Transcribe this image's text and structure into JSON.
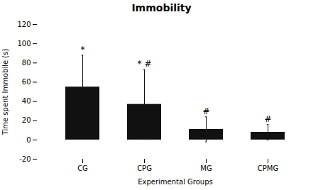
{
  "chart_data": {
    "type": "bar",
    "title": "Immobility",
    "xlabel": "Experimental Groups",
    "ylabel": "Time spent Immobile (s)",
    "categories": [
      "CG",
      "CPG",
      "MG",
      "CPMG"
    ],
    "values": [
      55,
      37,
      11,
      8
    ],
    "errors": [
      33,
      36,
      13,
      8
    ],
    "symbols": [
      "*",
      "* #",
      "#",
      "#"
    ],
    "color": "#111111",
    "ylim": [
      -20,
      120
    ],
    "yticks": [
      -20,
      0,
      20,
      40,
      60,
      80,
      100,
      120
    ],
    "grid": false
  }
}
